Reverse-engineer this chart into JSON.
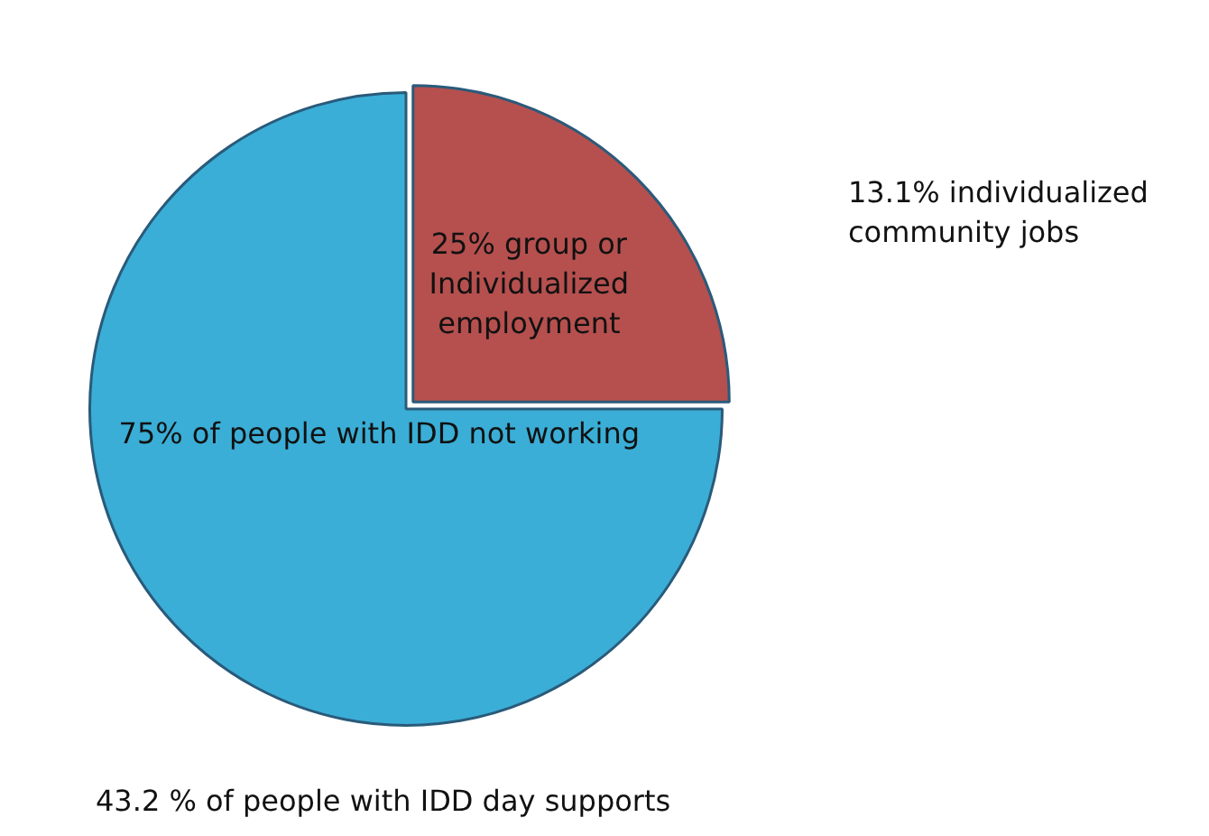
{
  "chart_data": {
    "type": "pie",
    "categories": [
      "25% group or Individualized employment",
      "75% of people with IDD not working"
    ],
    "values": [
      25,
      75
    ],
    "colors": [
      "#b5504e",
      "#3aaed6"
    ],
    "legend": false,
    "annotations": [
      "13.1% individualized community jobs",
      "43.2 % of people with IDD day supports"
    ]
  }
}
